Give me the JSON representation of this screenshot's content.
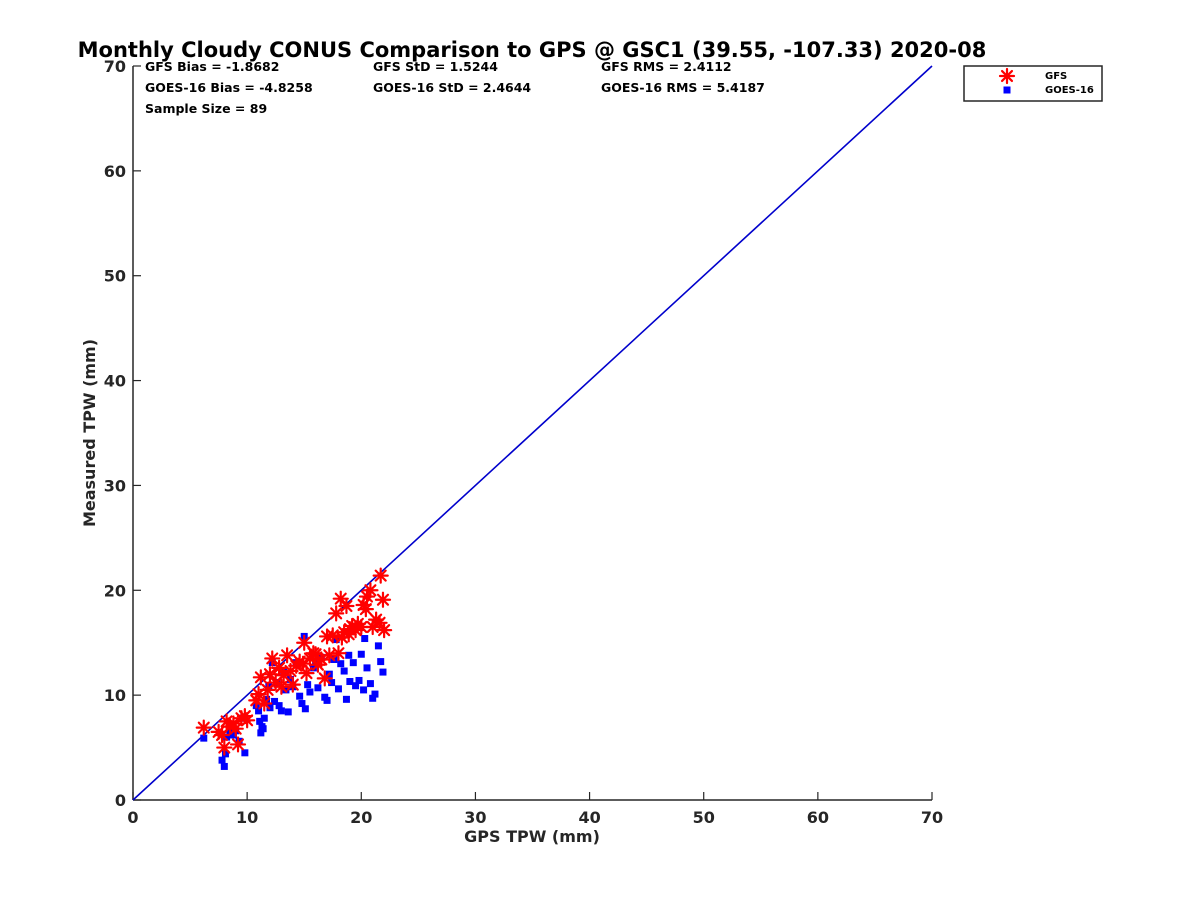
{
  "chart_data": {
    "type": "scatter",
    "title": "Monthly Cloudy CONUS Comparison to GPS @ GSC1 (39.55, -107.33) 2020-08",
    "xlabel": "GPS TPW (mm)",
    "ylabel": "Measured TPW (mm)",
    "xlim": [
      0,
      70
    ],
    "ylim": [
      0,
      70
    ],
    "xticks": [
      0,
      10,
      20,
      30,
      40,
      50,
      60,
      70
    ],
    "yticks": [
      0,
      10,
      20,
      30,
      40,
      50,
      60,
      70
    ],
    "grid": false,
    "legend_position": "top-right-outside",
    "reference_line": {
      "name": "1:1",
      "x": [
        0,
        70
      ],
      "y": [
        0,
        70
      ],
      "color": "#0000cc"
    },
    "stats": {
      "gfs_bias": "GFS Bias = -1.8682",
      "gfs_std": "GFS StD = 1.5244",
      "gfs_rms": "GFS RMS = 2.4112",
      "goes_bias": "GOES-16 Bias = -4.8258",
      "goes_std": "GOES-16 StD = 2.4644",
      "goes_rms": "GOES-16 RMS = 5.4187",
      "sample_size": "Sample Size = 89"
    },
    "series": [
      {
        "name": "GFS",
        "marker": "asterisk",
        "color": "#ff0000",
        "points": [
          [
            6.2,
            6.9
          ],
          [
            7.5,
            6.5
          ],
          [
            7.8,
            6.2
          ],
          [
            8.0,
            5.0
          ],
          [
            8.2,
            7.5
          ],
          [
            8.5,
            7.0
          ],
          [
            8.8,
            7.3
          ],
          [
            9.0,
            6.8
          ],
          [
            9.2,
            5.3
          ],
          [
            9.5,
            7.8
          ],
          [
            9.8,
            8.0
          ],
          [
            10.0,
            7.6
          ],
          [
            10.8,
            9.5
          ],
          [
            11.0,
            10.1
          ],
          [
            11.2,
            11.7
          ],
          [
            11.5,
            9.2
          ],
          [
            11.8,
            10.5
          ],
          [
            12.0,
            12.0
          ],
          [
            12.2,
            13.5
          ],
          [
            12.5,
            11.2
          ],
          [
            12.8,
            12.6
          ],
          [
            13.0,
            10.8
          ],
          [
            13.2,
            11.9
          ],
          [
            13.5,
            13.8
          ],
          [
            13.8,
            12.3
          ],
          [
            14.0,
            11.0
          ],
          [
            14.3,
            12.8
          ],
          [
            14.6,
            13.2
          ],
          [
            14.9,
            13.0
          ],
          [
            15.0,
            15.0
          ],
          [
            15.2,
            12.1
          ],
          [
            15.5,
            13.5
          ],
          [
            15.8,
            14.0
          ],
          [
            16.0,
            13.9
          ],
          [
            16.2,
            12.9
          ],
          [
            16.5,
            13.4
          ],
          [
            16.8,
            11.6
          ],
          [
            17.0,
            15.6
          ],
          [
            17.2,
            13.8
          ],
          [
            17.5,
            15.7
          ],
          [
            17.8,
            17.8
          ],
          [
            18.0,
            14.0
          ],
          [
            18.2,
            19.2
          ],
          [
            18.3,
            15.5
          ],
          [
            18.5,
            16.0
          ],
          [
            18.7,
            18.5
          ],
          [
            18.9,
            15.8
          ],
          [
            19.0,
            16.3
          ],
          [
            19.2,
            16.6
          ],
          [
            19.5,
            16.2
          ],
          [
            19.7,
            16.8
          ],
          [
            20.0,
            16.5
          ],
          [
            20.2,
            18.6
          ],
          [
            20.4,
            18.2
          ],
          [
            20.5,
            19.4
          ],
          [
            20.8,
            20.0
          ],
          [
            21.0,
            16.5
          ],
          [
            21.3,
            17.2
          ],
          [
            21.6,
            16.9
          ],
          [
            21.7,
            21.4
          ],
          [
            21.9,
            19.1
          ],
          [
            22.0,
            16.2
          ]
        ]
      },
      {
        "name": "GOES-16",
        "marker": "square",
        "color": "#0000ff",
        "points": [
          [
            6.2,
            5.9
          ],
          [
            7.8,
            3.8
          ],
          [
            8.0,
            3.2
          ],
          [
            8.1,
            4.4
          ],
          [
            8.2,
            6.0
          ],
          [
            8.5,
            6.5
          ],
          [
            8.8,
            6.2
          ],
          [
            9.0,
            6.6
          ],
          [
            9.3,
            5.6
          ],
          [
            9.6,
            7.8
          ],
          [
            9.8,
            4.5
          ],
          [
            10.8,
            9.0
          ],
          [
            11.0,
            8.5
          ],
          [
            11.1,
            7.5
          ],
          [
            11.2,
            6.4
          ],
          [
            11.3,
            7.0
          ],
          [
            11.4,
            6.8
          ],
          [
            11.5,
            7.8
          ],
          [
            11.7,
            9.6
          ],
          [
            11.9,
            10.9
          ],
          [
            12.0,
            8.8
          ],
          [
            12.2,
            13.1
          ],
          [
            12.4,
            9.4
          ],
          [
            12.6,
            11.2
          ],
          [
            12.8,
            9.0
          ],
          [
            13.0,
            8.5
          ],
          [
            13.2,
            12.2
          ],
          [
            13.4,
            10.5
          ],
          [
            13.6,
            8.4
          ],
          [
            13.8,
            11.5
          ],
          [
            14.0,
            10.8
          ],
          [
            14.3,
            13.1
          ],
          [
            14.6,
            9.9
          ],
          [
            14.8,
            9.2
          ],
          [
            15.0,
            15.6
          ],
          [
            15.1,
            8.7
          ],
          [
            15.3,
            11.0
          ],
          [
            15.5,
            10.3
          ],
          [
            15.8,
            12.6
          ],
          [
            16.0,
            13.1
          ],
          [
            16.2,
            10.7
          ],
          [
            16.5,
            13.6
          ],
          [
            16.8,
            9.8
          ],
          [
            17.0,
            9.5
          ],
          [
            17.2,
            12.0
          ],
          [
            17.4,
            11.2
          ],
          [
            17.6,
            13.4
          ],
          [
            17.8,
            15.3
          ],
          [
            18.0,
            10.6
          ],
          [
            18.2,
            13.0
          ],
          [
            18.5,
            12.3
          ],
          [
            18.7,
            9.6
          ],
          [
            18.9,
            13.8
          ],
          [
            19.0,
            11.3
          ],
          [
            19.3,
            13.1
          ],
          [
            19.5,
            10.9
          ],
          [
            19.8,
            11.4
          ],
          [
            20.0,
            13.9
          ],
          [
            20.2,
            10.5
          ],
          [
            20.3,
            15.4
          ],
          [
            20.5,
            12.6
          ],
          [
            20.8,
            11.1
          ],
          [
            21.0,
            9.7
          ],
          [
            21.2,
            10.1
          ],
          [
            21.5,
            14.7
          ],
          [
            21.7,
            13.2
          ],
          [
            21.9,
            12.2
          ]
        ]
      }
    ]
  }
}
